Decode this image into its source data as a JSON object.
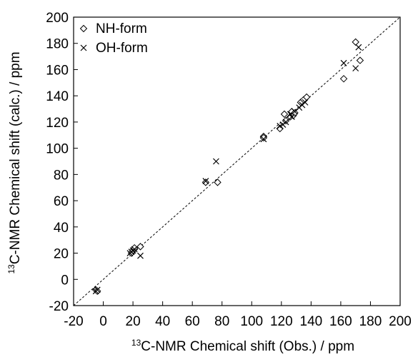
{
  "chart_data": {
    "type": "scatter",
    "xlabel_sup": "13",
    "xlabel": "C-NMR Chemical shift (Obs.) / ppm",
    "ylabel_sup": "13",
    "ylabel": "C-NMR Chemical shift (calc.) / ppm",
    "xlim": [
      -20,
      200
    ],
    "ylim": [
      -20,
      200
    ],
    "xticks": [
      -20,
      0,
      20,
      40,
      60,
      80,
      100,
      120,
      140,
      160,
      180,
      200
    ],
    "yticks": [
      -20,
      0,
      20,
      40,
      60,
      80,
      100,
      120,
      140,
      160,
      180,
      200
    ],
    "grid": false,
    "legend_position": "top-left",
    "reference_line": {
      "style": "dashed",
      "from": [
        -20,
        -20
      ],
      "to": [
        200,
        200
      ]
    },
    "series": [
      {
        "name": "NH-form",
        "marker": "diamond",
        "points": [
          [
            -5,
            -8
          ],
          [
            -4,
            -9
          ],
          [
            19,
            20
          ],
          [
            20,
            22
          ],
          [
            21,
            23
          ],
          [
            21,
            24
          ],
          [
            25,
            25
          ],
          [
            69,
            74
          ],
          [
            77,
            74
          ],
          [
            108,
            109
          ],
          [
            108,
            108
          ],
          [
            119,
            115
          ],
          [
            122,
            126
          ],
          [
            123,
            121
          ],
          [
            126,
            124
          ],
          [
            127,
            128
          ],
          [
            128,
            125
          ],
          [
            129,
            127
          ],
          [
            133,
            135
          ],
          [
            135,
            137
          ],
          [
            137,
            139
          ],
          [
            162,
            153
          ],
          [
            170,
            181
          ],
          [
            173,
            167
          ]
        ]
      },
      {
        "name": "OH-form",
        "marker": "cross",
        "points": [
          [
            -5,
            -9
          ],
          [
            -4,
            -8
          ],
          [
            18,
            20
          ],
          [
            19,
            21
          ],
          [
            20,
            22
          ],
          [
            21,
            23
          ],
          [
            25,
            18
          ],
          [
            69,
            75
          ],
          [
            76,
            90
          ],
          [
            108,
            107
          ],
          [
            119,
            117
          ],
          [
            121,
            118
          ],
          [
            123,
            120
          ],
          [
            126,
            126
          ],
          [
            127,
            124
          ],
          [
            129,
            128
          ],
          [
            132,
            131
          ],
          [
            134,
            133
          ],
          [
            136,
            135
          ],
          [
            162,
            165
          ],
          [
            170,
            161
          ],
          [
            172,
            177
          ]
        ]
      }
    ]
  }
}
